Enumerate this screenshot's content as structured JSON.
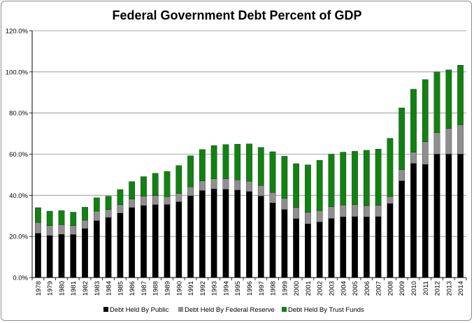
{
  "chart_data": {
    "type": "bar",
    "stacked": true,
    "title": "Federal Government Debt Percent of GDP",
    "xlabel": "",
    "ylabel": "",
    "ylim": [
      0,
      120
    ],
    "y_ticks": [
      "0.0%",
      "20.0%",
      "40.0%",
      "60.0%",
      "80.0%",
      "100.0%",
      "120.0%"
    ],
    "grid": "horizontal",
    "legend_position": "bottom",
    "categories": [
      "1978",
      "1979",
      "1980",
      "1981",
      "1982",
      "1983",
      "1984",
      "1985",
      "1986",
      "1987",
      "1988",
      "1989",
      "1990",
      "1991",
      "1992",
      "1993",
      "1994",
      "1995",
      "1996",
      "1997",
      "1998",
      "1999",
      "2000",
      "2001",
      "2002",
      "2003",
      "2004",
      "2005",
      "2006",
      "2007",
      "2008",
      "2009",
      "2010",
      "2011",
      "2012",
      "2013",
      "2014"
    ],
    "series": [
      {
        "name": "Debt Held By Public",
        "color": "#000000",
        "values": [
          21.5,
          20.4,
          21.0,
          20.9,
          23.8,
          27.6,
          29.2,
          31.3,
          34.0,
          35.0,
          35.4,
          35.5,
          36.8,
          39.7,
          42.3,
          43.1,
          42.9,
          42.5,
          41.8,
          39.6,
          36.3,
          33.1,
          28.6,
          26.1,
          27.0,
          28.7,
          29.5,
          29.6,
          29.5,
          29.6,
          36.0,
          47.0,
          55.5,
          55.0,
          60.0,
          60.0,
          60.0
        ]
      },
      {
        "name": "Debt Held By Federal Reserve",
        "color": "#8f8f8f",
        "values": [
          5.3,
          4.9,
          4.7,
          4.4,
          4.1,
          4.7,
          3.9,
          4.1,
          4.2,
          4.6,
          4.5,
          3.8,
          4.1,
          4.4,
          4.7,
          4.9,
          5.1,
          5.0,
          5.0,
          5.2,
          5.1,
          5.4,
          5.5,
          5.6,
          5.6,
          5.8,
          5.8,
          5.8,
          5.5,
          5.5,
          3.4,
          5.5,
          5.5,
          11.0,
          10.5,
          12.5,
          14.3
        ]
      },
      {
        "name": "Debt Held By Trust Funds",
        "color": "#118211",
        "values": [
          7.2,
          7.0,
          6.9,
          6.5,
          6.3,
          6.5,
          6.5,
          7.4,
          8.5,
          9.5,
          10.8,
          12.3,
          13.6,
          15.1,
          15.3,
          16.2,
          16.7,
          17.4,
          18.2,
          18.5,
          19.8,
          20.5,
          21.3,
          23.1,
          24.4,
          25.5,
          25.7,
          26.0,
          26.9,
          27.4,
          28.3,
          30.0,
          30.6,
          30.3,
          29.5,
          28.5,
          29.0
        ]
      }
    ]
  }
}
